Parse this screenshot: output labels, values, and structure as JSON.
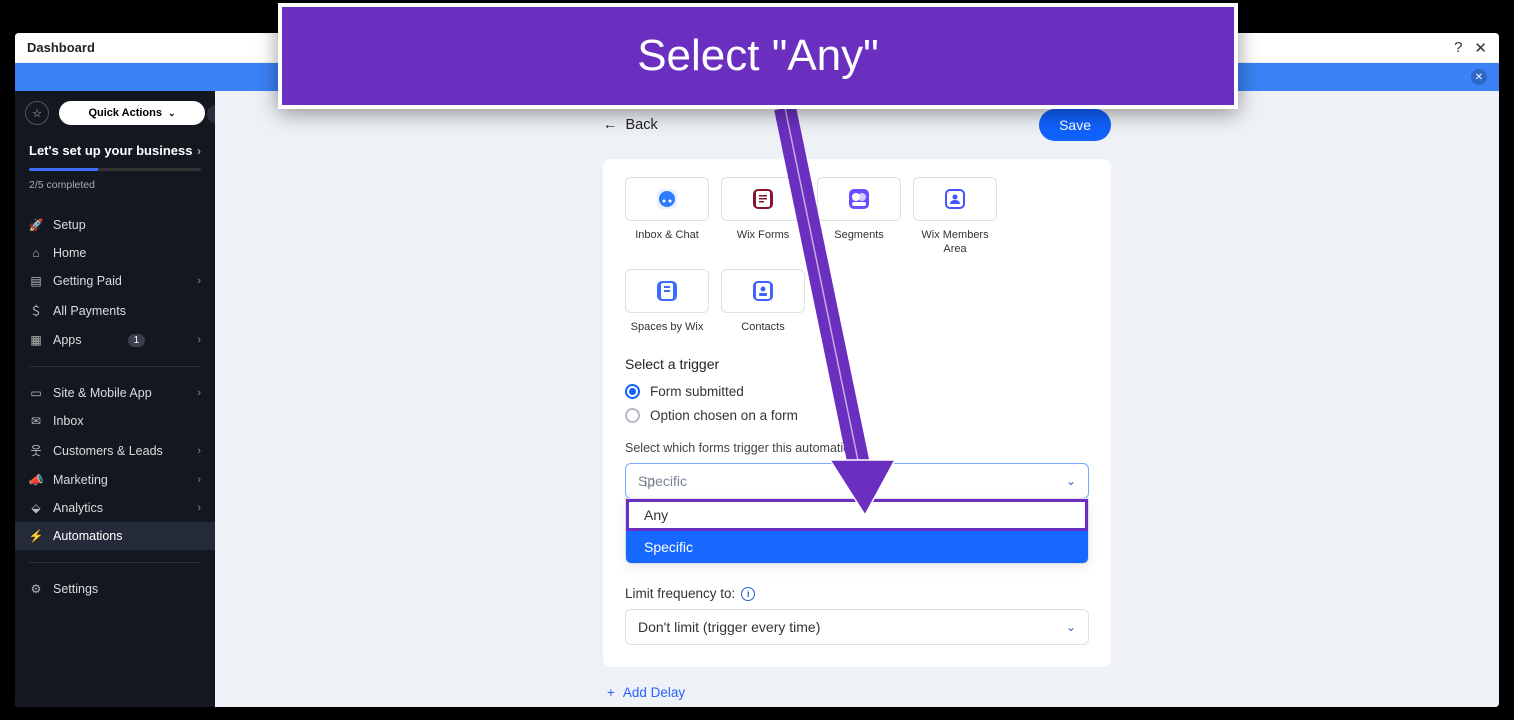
{
  "callout": {
    "text": "Select \"Any\""
  },
  "titlebar": {
    "title": "Dashboard"
  },
  "sidebar": {
    "quick_actions": "Quick Actions",
    "setup_title": "Let's set up your business",
    "progress_pct": 40,
    "progress_label": "2/5 completed",
    "items": [
      {
        "icon": "rocket",
        "label": "Setup",
        "chev": false
      },
      {
        "icon": "home",
        "label": "Home",
        "chev": false
      },
      {
        "icon": "card",
        "label": "Getting Paid",
        "chev": true
      },
      {
        "icon": "dollar",
        "label": "All Payments",
        "chev": false
      },
      {
        "icon": "grid",
        "label": "Apps",
        "chev": true,
        "badge": "1"
      }
    ],
    "items2": [
      {
        "icon": "device",
        "label": "Site & Mobile App",
        "chev": true
      },
      {
        "icon": "mail",
        "label": "Inbox",
        "chev": false
      },
      {
        "icon": "people",
        "label": "Customers & Leads",
        "chev": true
      },
      {
        "icon": "mega",
        "label": "Marketing",
        "chev": true
      },
      {
        "icon": "chart",
        "label": "Analytics",
        "chev": true
      },
      {
        "icon": "bolt",
        "label": "Automations",
        "chev": false,
        "active": true
      }
    ],
    "items3": [
      {
        "icon": "gear",
        "label": "Settings",
        "chev": false
      }
    ]
  },
  "header": {
    "back": "Back",
    "save": "Save"
  },
  "apps": [
    {
      "key": "inbox",
      "label": "Inbox & Chat",
      "bg": "#e9f1ff",
      "fg": "#2c7bff"
    },
    {
      "key": "forms",
      "label": "Wix Forms",
      "bg": "#8a1430",
      "fg": "#ffffff"
    },
    {
      "key": "segments",
      "label": "Segments",
      "bg": "#6c4cff",
      "fg": "#ffffff"
    },
    {
      "key": "members",
      "label": "Wix Members Area",
      "bg": "#4353ff",
      "fg": "#ffffff"
    },
    {
      "key": "spaces",
      "label": "Spaces by Wix",
      "bg": "#3a6cff",
      "fg": "#ffffff"
    },
    {
      "key": "contacts",
      "label": "Contacts",
      "bg": "#4262ff",
      "fg": "#ffffff"
    }
  ],
  "trigger": {
    "section_title": "Select a trigger",
    "options": [
      {
        "label": "Form submitted",
        "checked": true
      },
      {
        "label": "Option chosen on a form",
        "checked": false
      }
    ],
    "forms_label": "Select which forms trigger this automation:",
    "select_value": "Specific",
    "dropdown": [
      {
        "label": "Any",
        "highlight": true
      },
      {
        "label": "Specific",
        "selected": true
      }
    ],
    "freq_label": "Limit frequency to:",
    "freq_value": "Don't limit (trigger every time)"
  },
  "footer": {
    "add_delay": "Add Delay"
  },
  "colors": {
    "callout_bg": "#6a2fbf",
    "primary": "#0f62fe",
    "arrow": "#6a2fbf"
  }
}
